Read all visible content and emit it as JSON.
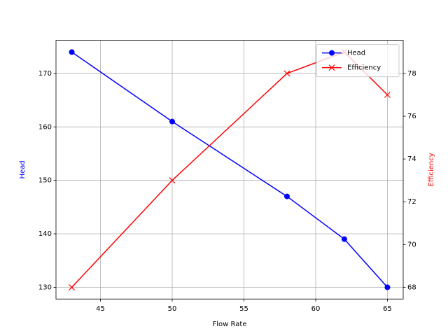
{
  "chart_data": {
    "type": "line",
    "xlabel": "Flow Rate",
    "ylabel": "Head",
    "y2label": "Efficiency",
    "x": [
      43,
      50,
      58,
      62,
      65
    ],
    "series": [
      {
        "name": "Head",
        "color": "#0000ff",
        "marker": "o",
        "values": [
          174,
          161,
          147,
          139,
          130
        ]
      },
      {
        "name": "Efficiency",
        "color": "#ff0000",
        "marker": "x",
        "axis": "y2",
        "values": [
          68,
          73,
          78,
          79,
          77
        ]
      }
    ],
    "xlim": [
      41.9,
      66.1
    ],
    "xticks": [
      45,
      50,
      55,
      60,
      65
    ],
    "ylim": [
      127.8,
      176.2
    ],
    "yticks": [
      130,
      140,
      150,
      160,
      170
    ],
    "y2lim": [
      67.45,
      79.55
    ],
    "y2ticks": [
      68,
      70,
      72,
      74,
      76,
      78
    ],
    "grid": true,
    "legend": "upper right"
  }
}
